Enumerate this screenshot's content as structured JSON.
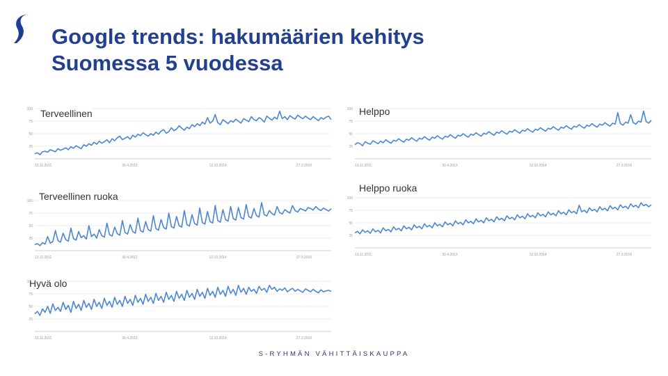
{
  "slide": {
    "title_line1": "Google trends: hakumäärien kehitys",
    "title_line2": "Suomessa 5 vuodessa",
    "footer": "S-RYHMÄN VÄHITTÄISKAUPPA",
    "accent_color": "#22408f",
    "line_color": "#4a86d4",
    "logo_icon": "s-logo-icon"
  },
  "chart_data": [
    {
      "type": "line",
      "title": "Terveellinen",
      "ylim": [
        0,
        100
      ],
      "yticks": [
        "100",
        "75",
        "50",
        "25"
      ],
      "xticks": [
        "13.11.2011",
        "30.4.2013",
        "12.10.2014",
        "27.3.2016"
      ],
      "series": [
        {
          "values": [
            10,
            12,
            8,
            14,
            15,
            13,
            18,
            16,
            14,
            20,
            17,
            19,
            22,
            18,
            24,
            21,
            26,
            23,
            20,
            28,
            25,
            30,
            27,
            33,
            29,
            35,
            31,
            34,
            38,
            32,
            40,
            36,
            42,
            45,
            38,
            41,
            44,
            39,
            47,
            43,
            49,
            46,
            52,
            48,
            45,
            50,
            47,
            53,
            49,
            55,
            58,
            51,
            54,
            62,
            56,
            59,
            66,
            61,
            57,
            63,
            60,
            68,
            64,
            70,
            66,
            73,
            69,
            82,
            71,
            75,
            88,
            72,
            68,
            78,
            74,
            70,
            76,
            73,
            79,
            75,
            71,
            80,
            77,
            74,
            84,
            78,
            76,
            82,
            79,
            73,
            85,
            81,
            77,
            83,
            79,
            95,
            80,
            84,
            78,
            86,
            82,
            79,
            87,
            83,
            80,
            85,
            81,
            78,
            84,
            80,
            76,
            82,
            79,
            83,
            85,
            78
          ]
        }
      ],
      "grid": true,
      "legend": "none"
    },
    {
      "type": "line",
      "title": "Helppo",
      "ylim": [
        0,
        100
      ],
      "yticks": [
        "100",
        "75",
        "50",
        "25"
      ],
      "xticks": [
        "13.11.2011",
        "30.4.2013",
        "12.10.2014",
        "27.3.2016"
      ],
      "series": [
        {
          "values": [
            28,
            32,
            30,
            26,
            34,
            31,
            29,
            36,
            33,
            30,
            35,
            32,
            38,
            34,
            31,
            37,
            35,
            40,
            36,
            33,
            39,
            37,
            42,
            38,
            35,
            41,
            39,
            44,
            40,
            37,
            43,
            41,
            46,
            42,
            39,
            45,
            43,
            48,
            44,
            41,
            47,
            45,
            50,
            46,
            43,
            49,
            47,
            52,
            48,
            45,
            51,
            49,
            54,
            50,
            47,
            53,
            51,
            56,
            52,
            49,
            55,
            53,
            58,
            54,
            51,
            57,
            55,
            60,
            56,
            53,
            59,
            57,
            62,
            58,
            55,
            61,
            59,
            64,
            60,
            57,
            63,
            61,
            66,
            62,
            59,
            65,
            63,
            68,
            64,
            61,
            67,
            65,
            70,
            66,
            63,
            69,
            67,
            72,
            68,
            65,
            71,
            69,
            92,
            70,
            67,
            73,
            71,
            88,
            72,
            69,
            75,
            73,
            95,
            74,
            71,
            77
          ]
        }
      ],
      "grid": true,
      "legend": "none"
    },
    {
      "type": "line",
      "title": "Terveellinen ruoka",
      "ylim": [
        0,
        100
      ],
      "yticks": [
        "100",
        "75",
        "50",
        "25"
      ],
      "xticks": [
        "13.11.2011",
        "30.4.2013",
        "12.10.2014",
        "27.3.2016"
      ],
      "series": [
        {
          "values": [
            12,
            14,
            10,
            16,
            13,
            28,
            15,
            18,
            40,
            20,
            17,
            35,
            22,
            19,
            45,
            24,
            21,
            38,
            26,
            30,
            23,
            50,
            28,
            33,
            25,
            42,
            30,
            27,
            55,
            32,
            29,
            47,
            34,
            31,
            60,
            36,
            33,
            52,
            38,
            35,
            65,
            40,
            37,
            58,
            42,
            39,
            70,
            44,
            41,
            62,
            46,
            43,
            75,
            48,
            45,
            68,
            50,
            47,
            80,
            52,
            49,
            72,
            54,
            51,
            85,
            56,
            53,
            78,
            58,
            55,
            90,
            60,
            57,
            82,
            62,
            59,
            88,
            64,
            61,
            86,
            66,
            63,
            92,
            68,
            65,
            84,
            70,
            67,
            96,
            72,
            69,
            80,
            74,
            71,
            88,
            76,
            73,
            82,
            78,
            75,
            90,
            80,
            77,
            84,
            82,
            79,
            86,
            84,
            81,
            88,
            83,
            80,
            85,
            82,
            79,
            84
          ]
        }
      ],
      "grid": true,
      "legend": "none"
    },
    {
      "type": "line",
      "title": "Helppo ruoka",
      "ylim": [
        0,
        100
      ],
      "yticks": [
        "100",
        "75",
        "50",
        "25"
      ],
      "xticks": [
        "13.11.2011",
        "30.4.2013",
        "12.10.2014",
        "27.3.2016"
      ],
      "series": [
        {
          "values": [
            30,
            33,
            28,
            36,
            31,
            34,
            29,
            38,
            32,
            35,
            30,
            40,
            34,
            37,
            32,
            42,
            36,
            39,
            34,
            44,
            38,
            41,
            36,
            46,
            40,
            43,
            38,
            48,
            42,
            45,
            40,
            50,
            44,
            47,
            42,
            52,
            46,
            49,
            44,
            54,
            48,
            51,
            46,
            56,
            50,
            53,
            48,
            58,
            52,
            55,
            50,
            60,
            54,
            57,
            52,
            62,
            56,
            59,
            54,
            64,
            58,
            61,
            56,
            66,
            60,
            63,
            58,
            68,
            62,
            65,
            60,
            70,
            64,
            67,
            62,
            72,
            66,
            69,
            64,
            74,
            68,
            71,
            66,
            76,
            70,
            73,
            68,
            85,
            72,
            75,
            70,
            80,
            74,
            77,
            72,
            82,
            76,
            79,
            74,
            84,
            78,
            81,
            76,
            86,
            80,
            83,
            78,
            88,
            82,
            85,
            80,
            90,
            84,
            87,
            82,
            86
          ]
        }
      ],
      "grid": true,
      "legend": "none"
    },
    {
      "type": "line",
      "title": "Hyvä olo",
      "ylim": [
        0,
        100
      ],
      "yticks": [
        "100",
        "75",
        "50",
        "25"
      ],
      "xticks": [
        "13.11.2011",
        "30.4.2013",
        "12.10.2014",
        "27.3.2016"
      ],
      "series": [
        {
          "values": [
            35,
            40,
            32,
            45,
            38,
            50,
            36,
            55,
            42,
            48,
            40,
            58,
            44,
            52,
            38,
            60,
            46,
            54,
            42,
            62,
            48,
            56,
            44,
            64,
            50,
            58,
            46,
            66,
            52,
            60,
            48,
            68,
            54,
            62,
            50,
            70,
            56,
            64,
            52,
            72,
            58,
            66,
            54,
            74,
            60,
            68,
            56,
            76,
            62,
            70,
            58,
            78,
            64,
            72,
            60,
            80,
            66,
            74,
            62,
            82,
            68,
            76,
            64,
            84,
            70,
            78,
            66,
            86,
            72,
            80,
            68,
            88,
            74,
            82,
            70,
            90,
            76,
            84,
            72,
            92,
            78,
            86,
            74,
            88,
            80,
            84,
            76,
            90,
            82,
            86,
            78,
            92,
            84,
            88,
            80,
            85,
            82,
            87,
            79,
            83,
            86,
            80,
            84,
            81,
            78,
            85,
            82,
            79,
            84,
            80,
            77,
            83,
            79,
            81,
            82,
            80
          ]
        }
      ],
      "grid": true,
      "legend": "none"
    }
  ]
}
